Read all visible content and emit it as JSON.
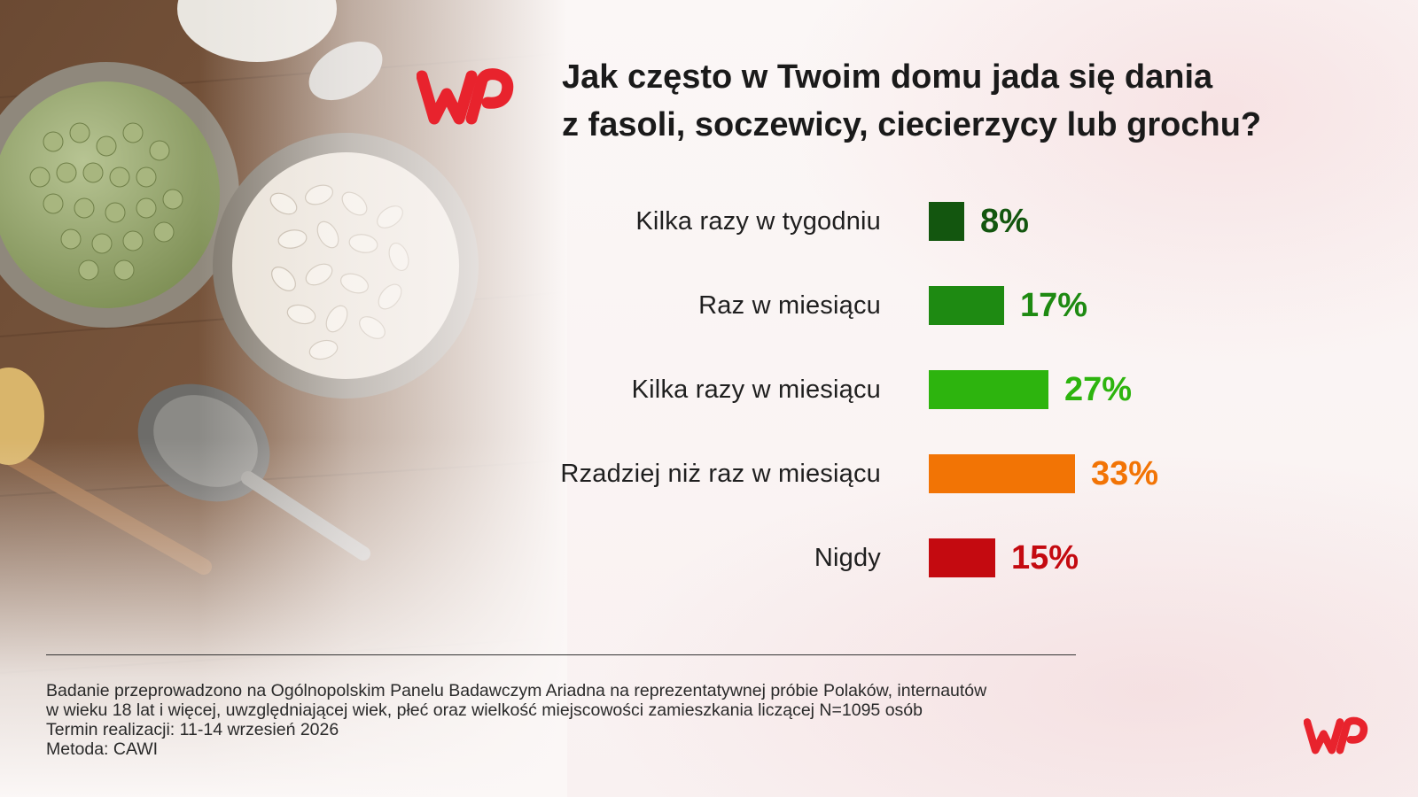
{
  "brand": {
    "logo_text": "WP",
    "color": "#e8232d"
  },
  "title": {
    "line1": "Jak często w Twoim domu jada się dania",
    "line2": "z fasoli, soczewicy, ciecierzycy lub grochu?"
  },
  "chart_data": {
    "type": "bar",
    "orientation": "horizontal",
    "title": "Jak często w Twoim domu jada się dania z fasoli, soczewicy, ciecierzycy lub grochu?",
    "categories": [
      "Kilka razy w tygodniu",
      "Raz w miesiącu",
      "Kilka razy w miesiącu",
      "Rzadziej niż raz w miesiącu",
      "Nigdy"
    ],
    "values": [
      8,
      17,
      27,
      33,
      15
    ],
    "value_labels": [
      "8%",
      "17%",
      "27%",
      "33%",
      "15%"
    ],
    "unit": "%",
    "colors": [
      "#13560f",
      "#1e8a12",
      "#2db40e",
      "#f27405",
      "#c40a10"
    ],
    "xlim": [
      0,
      33
    ],
    "grid": false,
    "legend": "none"
  },
  "footnote": {
    "line1": "Badanie przeprowadzono na Ogólnopolskim Panelu Badawczym Ariadna na reprezentatywnej próbie Polaków, internautów",
    "line2": "w wieku 18 lat i więcej, uwzględniającej wiek, płeć oraz wielkość miejscowości zamieszkania liczącej N=1095 osób",
    "line3": "Termin realizacji: 11-14 wrzesień 2026",
    "line4": "Metoda: CAWI"
  }
}
